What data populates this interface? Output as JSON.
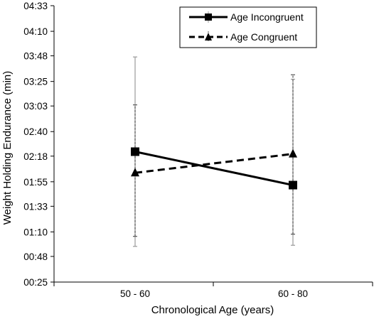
{
  "chart_data": {
    "type": "line",
    "xlabel": "Chronological Age (years)",
    "ylabel": "Weight Holding Endurance (min)",
    "categories": [
      "50 - 60",
      "60 - 80"
    ],
    "y_ticks": [
      "00:25",
      "00:48",
      "01:10",
      "01:33",
      "01:55",
      "02:18",
      "02:40",
      "03:03",
      "03:25",
      "03:48",
      "04:10",
      "04:33"
    ],
    "ylim": [
      "00:25",
      "04:33"
    ],
    "grid": false,
    "legend_position": "top-right",
    "series": [
      {
        "name": "Age Incongruent",
        "marker": "square",
        "line_style": "solid",
        "values": [
          "02:22",
          "01:52"
        ],
        "error_low": [
          "00:57",
          "00:58"
        ],
        "error_high": [
          "03:47",
          "03:27"
        ],
        "error_color": "#999999"
      },
      {
        "name": "Age Congruent",
        "marker": "triangle",
        "line_style": "dashed",
        "values": [
          "02:03",
          "02:20"
        ],
        "error_low": [
          "01:06",
          "01:08"
        ],
        "error_high": [
          "03:04",
          "03:31"
        ],
        "error_color": "#555555"
      }
    ]
  }
}
